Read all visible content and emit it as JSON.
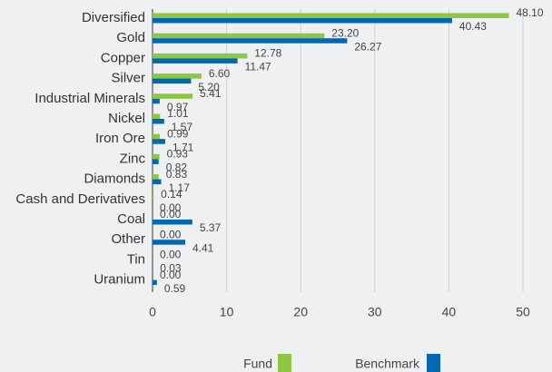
{
  "chart_data": {
    "type": "hbar",
    "categories": [
      "Diversified",
      "Gold",
      "Copper",
      "Silver",
      "Industrial Minerals",
      "Nickel",
      "Iron Ore",
      "Zinc",
      "Diamonds",
      "Cash and Derivatives",
      "Coal",
      "Other",
      "Tin",
      "Uranium"
    ],
    "series": [
      {
        "name": "Fund",
        "color": "#8dc63f",
        "values": [
          48.1,
          23.2,
          12.78,
          6.6,
          5.41,
          1.01,
          0.99,
          0.93,
          0.83,
          0.14,
          0,
          0,
          0,
          0
        ],
        "value_labels": [
          "48.10",
          "23.20",
          "12.78",
          "6.60",
          "5.41",
          "1.01",
          "0.99",
          "0.93",
          "0.83",
          "0.14",
          "0.00",
          "0.00",
          "0.00",
          "0.00"
        ]
      },
      {
        "name": "Benchmark",
        "color": "#0067b1",
        "values": [
          40.43,
          26.27,
          11.47,
          5.2,
          0.97,
          1.57,
          1.71,
          0.82,
          1.17,
          0,
          5.37,
          4.41,
          0.03,
          0.59
        ],
        "value_labels": [
          "40.43",
          "26.27",
          "11.47",
          "5.20",
          "0.97",
          "1.57",
          "1.71",
          "0.82",
          "1.17",
          "0.00",
          "5.37",
          "4.41",
          "0.03",
          "0.59"
        ]
      }
    ],
    "xlim": [
      0,
      50
    ],
    "xticks": [
      0,
      10,
      20,
      30,
      40,
      50
    ],
    "grid": true
  }
}
